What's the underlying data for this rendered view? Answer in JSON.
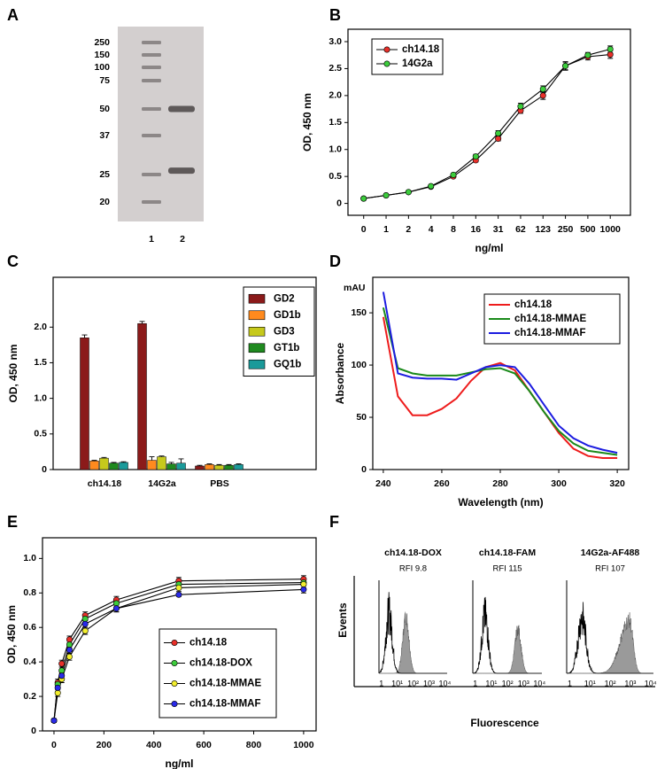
{
  "chart_data": [
    {
      "type": "gel",
      "panel": "A",
      "yticks": [
        250,
        150,
        100,
        75,
        50,
        37,
        25,
        20
      ],
      "categories": [
        "1",
        "2"
      ],
      "bands": [
        50,
        26
      ]
    },
    {
      "type": "line",
      "panel": "B",
      "xlabel": "ng/ml",
      "ylabel": "OD, 450 nm",
      "categories": [
        "0",
        "1",
        "2",
        "4",
        "8",
        "16",
        "31",
        "62",
        "123",
        "250",
        "500",
        "1000"
      ],
      "ylim": [
        -0.22,
        3.23
      ],
      "yticks": [
        0,
        0.5,
        {
          "value": 1,
          "label": "1.0"
        },
        1.5,
        {
          "value": 2,
          "label": "2.0"
        },
        2.5,
        {
          "value": 3,
          "label": "3.0"
        }
      ],
      "markers": true,
      "line_color": "#000000",
      "legend": "upper left",
      "series": [
        {
          "name": "ch14.18",
          "color": "#e8302a",
          "values": [
            0.09,
            0.15,
            0.21,
            0.31,
            0.5,
            0.8,
            1.2,
            1.72,
            2.0,
            2.55,
            2.72,
            2.76
          ],
          "errors": [
            0.01,
            0.01,
            0.01,
            0.02,
            0.02,
            0.03,
            0.04,
            0.05,
            0.07,
            0.08,
            0.06,
            0.07
          ]
        },
        {
          "name": "14G2a",
          "color": "#3ccc3c",
          "values": [
            0.09,
            0.15,
            0.21,
            0.32,
            0.53,
            0.87,
            1.3,
            1.8,
            2.12,
            2.55,
            2.75,
            2.86
          ],
          "errors": [
            0.01,
            0.01,
            0.01,
            0.02,
            0.03,
            0.04,
            0.05,
            0.06,
            0.06,
            0.07,
            0.05,
            0.06
          ]
        }
      ]
    },
    {
      "type": "bar",
      "panel": "C",
      "ylabel": "OD, 450 nm",
      "categories": [
        "ch14.18",
        "14G2a",
        "PBS"
      ],
      "ylim": [
        0,
        2.7
      ],
      "yticks": [
        0,
        0.5,
        {
          "value": 1,
          "label": "1.0"
        },
        1.5,
        {
          "value": 2,
          "label": "2.0"
        }
      ],
      "legend": "upper right",
      "series": [
        {
          "name": "GD2",
          "color": "#8b1a1a",
          "values": [
            1.85,
            2.05,
            0.05
          ],
          "errors": [
            0.04,
            0.03,
            0.01
          ]
        },
        {
          "name": "GD1b",
          "color": "#ff8a1e",
          "values": [
            0.12,
            0.13,
            0.07
          ],
          "errors": [
            0.01,
            0.05,
            0.01
          ]
        },
        {
          "name": "GD3",
          "color": "#c6c91c",
          "values": [
            0.16,
            0.18,
            0.06
          ],
          "errors": [
            0.01,
            0.01,
            0.01
          ]
        },
        {
          "name": "GT1b",
          "color": "#1f8a1f",
          "values": [
            0.09,
            0.08,
            0.06
          ],
          "errors": [
            0.01,
            0.02,
            0.01
          ]
        },
        {
          "name": "GQ1b",
          "color": "#1a9a9a",
          "values": [
            0.1,
            0.09,
            0.07
          ],
          "errors": [
            0.01,
            0.06,
            0.01
          ]
        }
      ]
    },
    {
      "type": "line",
      "panel": "D",
      "xlabel": "Wavelength (nm)",
      "ylabel": "Absorbance",
      "y_unit": "mAU",
      "x": [
        240,
        245,
        250,
        255,
        260,
        265,
        270,
        275,
        280,
        285,
        290,
        295,
        300,
        305,
        310,
        315,
        320
      ],
      "xlim": [
        236.4,
        323.9
      ],
      "xticks": [
        240,
        260,
        280,
        300,
        320
      ],
      "ylim": [
        0,
        184
      ],
      "yticks": [
        0,
        50,
        100,
        150
      ],
      "markers": false,
      "legend": "upper right",
      "series": [
        {
          "name": "ch14.18",
          "color": "#ee1c1c",
          "values": [
            146,
            70,
            52,
            52,
            58,
            68,
            85,
            98,
            102,
            95,
            75,
            55,
            35,
            20,
            13,
            11,
            11
          ]
        },
        {
          "name": "ch14.18-MMAE",
          "color": "#1a8a1a",
          "values": [
            155,
            97,
            92,
            90,
            90,
            90,
            93,
            96,
            97,
            92,
            75,
            55,
            37,
            25,
            18,
            16,
            14
          ]
        },
        {
          "name": "ch14.18-MMAF",
          "color": "#1c1ce0",
          "values": [
            170,
            92,
            88,
            87,
            87,
            86,
            92,
            98,
            100,
            98,
            82,
            62,
            42,
            30,
            23,
            19,
            16
          ]
        }
      ]
    },
    {
      "type": "line",
      "panel": "E",
      "xlabel": "ng/ml",
      "ylabel": "OD, 450 nm",
      "x": [
        0,
        15,
        31,
        62,
        125,
        250,
        500,
        1000
      ],
      "xlim": [
        -46,
        1050
      ],
      "xticks": [
        0,
        200,
        400,
        600,
        800,
        1000
      ],
      "ylim": [
        0,
        1.12
      ],
      "yticks": [
        0,
        0.2,
        0.4,
        0.6,
        0.8,
        {
          "value": 1,
          "label": "1.0"
        }
      ],
      "markers": true,
      "line_color": "#000000",
      "legend": "lower right",
      "series": [
        {
          "name": "ch14.18",
          "color": "#e8302a",
          "values": [
            0.06,
            0.28,
            0.39,
            0.53,
            0.67,
            0.76,
            0.87,
            0.88
          ],
          "errors": [
            0.01,
            0.02,
            0.02,
            0.02,
            0.02,
            0.02,
            0.02,
            0.02
          ]
        },
        {
          "name": "ch14.18-DOX",
          "color": "#3ccc3c",
          "values": [
            0.06,
            0.27,
            0.35,
            0.5,
            0.65,
            0.74,
            0.85,
            0.86
          ],
          "errors": [
            0.01,
            0.02,
            0.02,
            0.02,
            0.02,
            0.02,
            0.02,
            0.02
          ]
        },
        {
          "name": "ch14.18-MMAE",
          "color": "#f2ee2e",
          "values": [
            0.06,
            0.22,
            0.3,
            0.43,
            0.58,
            0.71,
            0.83,
            0.85
          ],
          "errors": [
            0.01,
            0.02,
            0.02,
            0.02,
            0.02,
            0.02,
            0.02,
            0.02
          ]
        },
        {
          "name": "ch14.18-MMAF",
          "color": "#2a2ae8",
          "values": [
            0.06,
            0.25,
            0.32,
            0.47,
            0.62,
            0.71,
            0.79,
            0.82
          ],
          "errors": [
            0.01,
            0.02,
            0.02,
            0.02,
            0.02,
            0.02,
            0.01,
            0.02
          ]
        }
      ]
    },
    {
      "type": "histogram",
      "panel": "F",
      "xlabel": "Fluorescence",
      "ylabel": "Events",
      "xlim": [
        0.7,
        14000
      ],
      "xticks": [
        1,
        {
          "value": 10,
          "label": "10¹"
        },
        {
          "value": 100,
          "label": "10²"
        },
        {
          "value": 1000,
          "label": "10³"
        },
        {
          "value": 10000,
          "label": "10⁴"
        }
      ],
      "subplots": [
        {
          "title": "ch14.18-DOX",
          "annotation": "RFI 9.8",
          "control_peak": 3,
          "stained_peak": 35
        },
        {
          "title": "ch14.18-FAM",
          "annotation": "RFI 115",
          "control_peak": 4,
          "stained_peak": 450
        },
        {
          "title": "14G2a-AF488",
          "annotation": "RFI 107",
          "control_peak": 4,
          "stained_peak": 900
        }
      ]
    }
  ]
}
